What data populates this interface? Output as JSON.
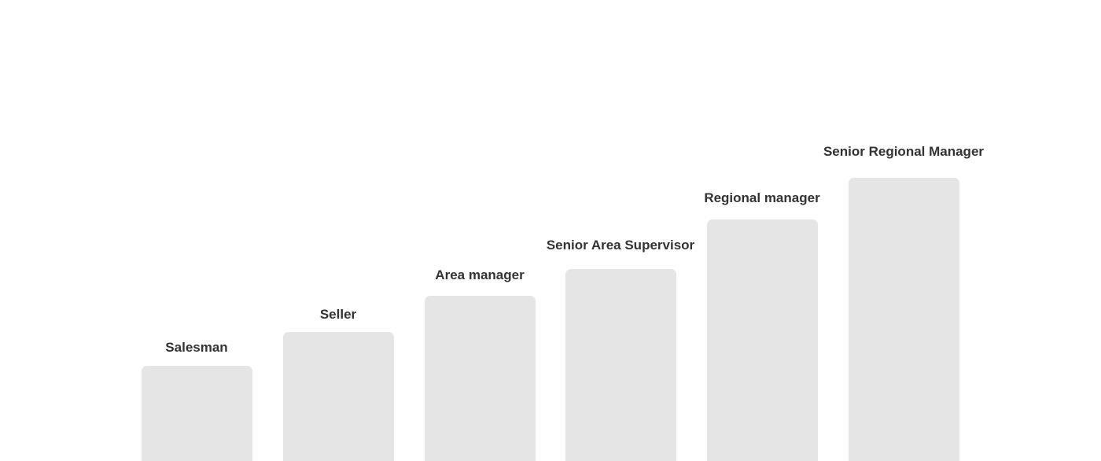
{
  "steps": [
    {
      "label": "Salesman"
    },
    {
      "label": "Seller"
    },
    {
      "label": "Area manager"
    },
    {
      "label": "Senior Area Supervisor"
    },
    {
      "label": "Regional manager"
    },
    {
      "label": "Senior Regional Manager"
    }
  ],
  "colors": {
    "step_fill": "#e5e5e5",
    "label_text": "#333333"
  }
}
